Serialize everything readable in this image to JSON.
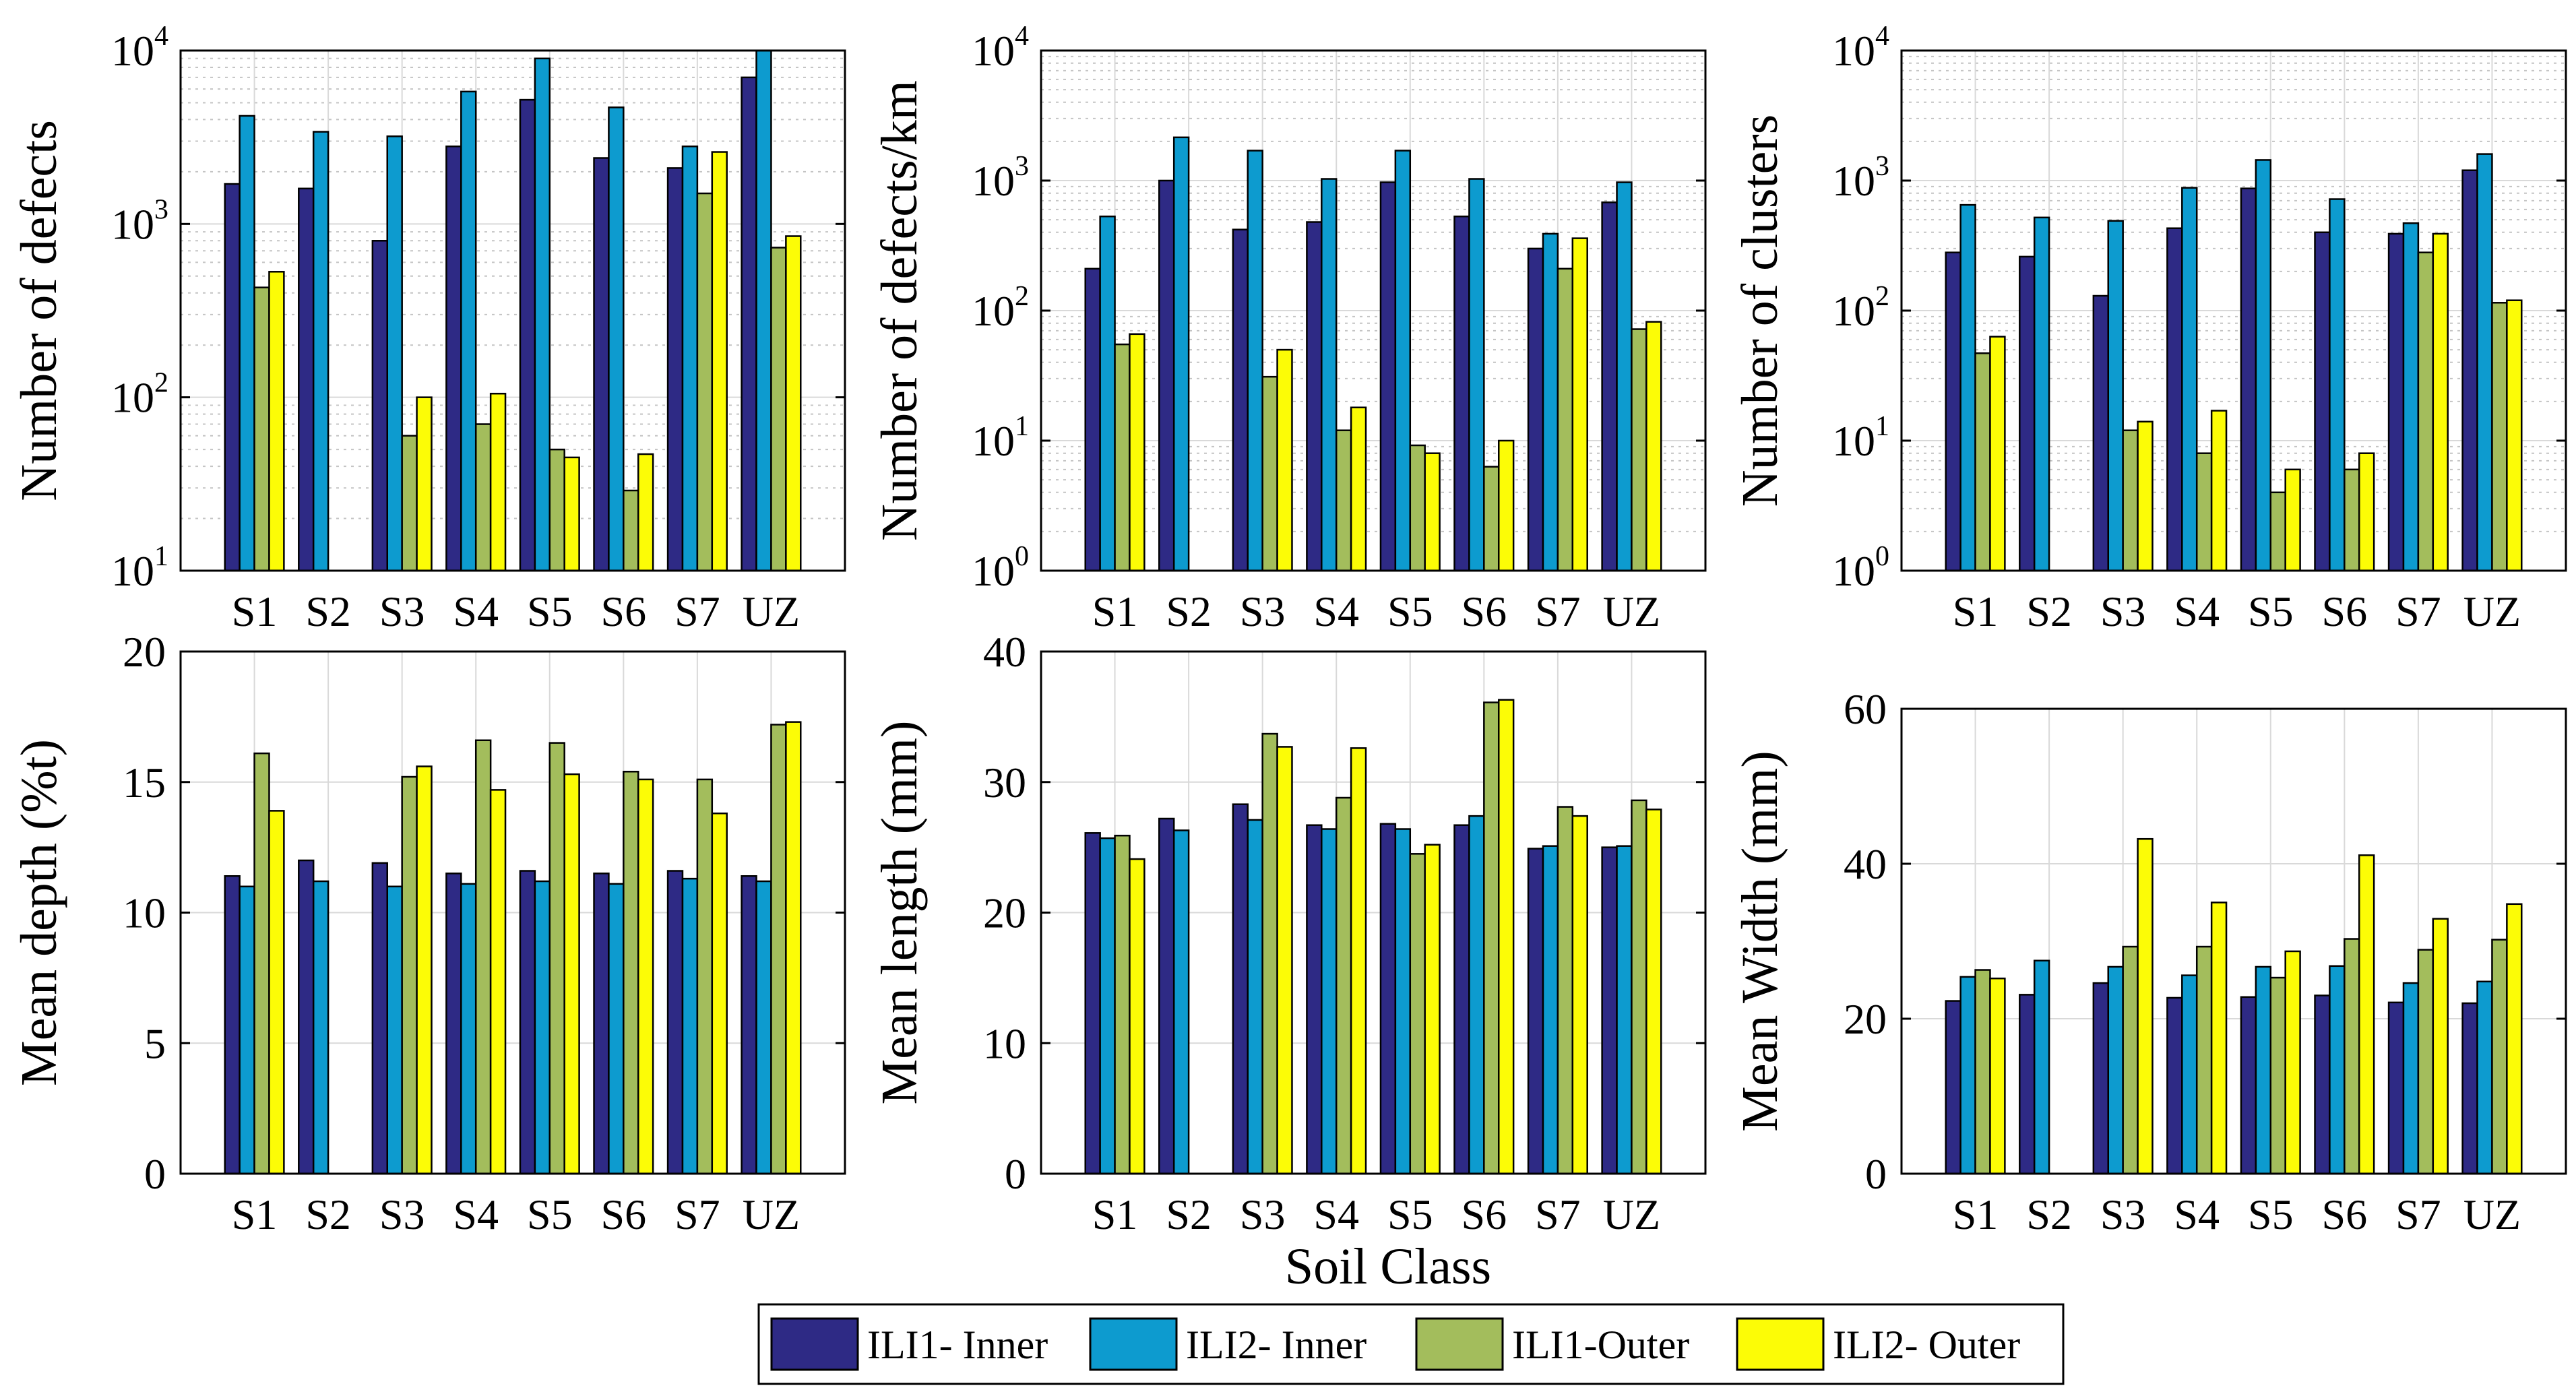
{
  "figure": {
    "xlabel": "Soil Class"
  },
  "colors": {
    "ILI1- Inner": "#2e2a85",
    "ILI2- Inner": "#0d9bcf",
    "ILI1-Outer": "#a3bd5c",
    "ILI2- Outer": "#fcfc06",
    "grid_major": "#d9d9d9",
    "grid_minor": "#c4c4c4"
  },
  "legend": {
    "entries": [
      "ILI1- Inner",
      "ILI2- Inner",
      "ILI1-Outer",
      "ILI2- Outer"
    ],
    "placement": "bottom-center"
  },
  "chart_data": [
    {
      "id": "defects",
      "type": "bar",
      "scale": "log",
      "ylabel": "Number of defects",
      "ylim": [
        10,
        10000
      ],
      "yticks": [
        "10^1",
        "10^2",
        "10^3",
        "10^4"
      ],
      "categories": [
        "S1",
        "S2",
        "S3",
        "S4",
        "S5",
        "S6",
        "S7",
        "UZ"
      ],
      "series": [
        {
          "name": "ILI1- Inner",
          "values": [
            1700,
            1600,
            800,
            2800,
            5200,
            2400,
            2100,
            7000
          ]
        },
        {
          "name": "ILI2- Inner",
          "values": [
            4200,
            3400,
            3200,
            5800,
            9000,
            4700,
            2800,
            10000
          ]
        },
        {
          "name": "ILI1-Outer",
          "values": [
            430,
            null,
            60,
            70,
            50,
            29,
            1500,
            730
          ]
        },
        {
          "name": "ILI2- Outer",
          "values": [
            530,
            null,
            100,
            105,
            45,
            47,
            2600,
            850
          ]
        }
      ]
    },
    {
      "id": "defects_km",
      "type": "bar",
      "scale": "log",
      "ylabel": "Number of defects/km",
      "ylim": [
        1,
        10000
      ],
      "yticks": [
        "10^0",
        "10^1",
        "10^2",
        "10^3",
        "10^4"
      ],
      "categories": [
        "S1",
        "S2",
        "S3",
        "S4",
        "S5",
        "S6",
        "S7",
        "UZ"
      ],
      "series": [
        {
          "name": "ILI1- Inner",
          "values": [
            210,
            1000,
            420,
            480,
            970,
            530,
            300,
            680
          ]
        },
        {
          "name": "ILI2- Inner",
          "values": [
            530,
            2150,
            1700,
            1030,
            1700,
            1030,
            390,
            970
          ]
        },
        {
          "name": "ILI1-Outer",
          "values": [
            55,
            null,
            31,
            12,
            9.2,
            6.3,
            210,
            72
          ]
        },
        {
          "name": "ILI2- Outer",
          "values": [
            66,
            null,
            50,
            18,
            8,
            10,
            360,
            82
          ]
        }
      ]
    },
    {
      "id": "clusters",
      "type": "bar",
      "scale": "log",
      "ylabel": "Number of clusters",
      "ylim": [
        1,
        10000
      ],
      "yticks": [
        "10^0",
        "10^1",
        "10^2",
        "10^3",
        "10^4"
      ],
      "categories": [
        "S1",
        "S2",
        "S3",
        "S4",
        "S5",
        "S6",
        "S7",
        "UZ"
      ],
      "series": [
        {
          "name": "ILI1- Inner",
          "values": [
            280,
            260,
            130,
            430,
            870,
            400,
            390,
            1200
          ]
        },
        {
          "name": "ILI2- Inner",
          "values": [
            650,
            520,
            490,
            880,
            1440,
            720,
            470,
            1600
          ]
        },
        {
          "name": "ILI1-Outer",
          "values": [
            47,
            null,
            12,
            8,
            4,
            6,
            280,
            115
          ]
        },
        {
          "name": "ILI2- Outer",
          "values": [
            63,
            null,
            14,
            17,
            6,
            8,
            390,
            120
          ]
        }
      ]
    },
    {
      "id": "depth",
      "type": "bar",
      "scale": "linear",
      "ylabel": "Mean depth (%t)",
      "ylim": [
        0,
        20
      ],
      "yticks": [
        "0",
        "5",
        "10",
        "15",
        "20"
      ],
      "categories": [
        "S1",
        "S2",
        "S3",
        "S4",
        "S5",
        "S6",
        "S7",
        "UZ"
      ],
      "series": [
        {
          "name": "ILI1- Inner",
          "values": [
            11.4,
            12.0,
            11.9,
            11.5,
            11.6,
            11.5,
            11.6,
            11.4
          ]
        },
        {
          "name": "ILI2- Inner",
          "values": [
            11.0,
            11.2,
            11.0,
            11.1,
            11.2,
            11.1,
            11.3,
            11.2
          ]
        },
        {
          "name": "ILI1-Outer",
          "values": [
            16.1,
            null,
            15.2,
            16.6,
            16.5,
            15.4,
            15.1,
            17.2
          ]
        },
        {
          "name": "ILI2- Outer",
          "values": [
            13.9,
            null,
            15.6,
            14.7,
            15.3,
            15.1,
            13.8,
            17.3
          ]
        }
      ]
    },
    {
      "id": "length",
      "type": "bar",
      "scale": "linear",
      "ylabel": "Mean length (mm)",
      "ylim": [
        0,
        40
      ],
      "yticks": [
        "0",
        "10",
        "20",
        "30",
        "40"
      ],
      "categories": [
        "S1",
        "S2",
        "S3",
        "S4",
        "S5",
        "S6",
        "S7",
        "UZ"
      ],
      "series": [
        {
          "name": "ILI1- Inner",
          "values": [
            26.1,
            27.2,
            28.3,
            26.7,
            26.8,
            26.7,
            24.9,
            25.0
          ]
        },
        {
          "name": "ILI2- Inner",
          "values": [
            25.7,
            26.3,
            27.1,
            26.4,
            26.4,
            27.4,
            25.1,
            25.1
          ]
        },
        {
          "name": "ILI1-Outer",
          "values": [
            25.9,
            null,
            33.7,
            28.8,
            24.5,
            36.1,
            28.1,
            28.6
          ]
        },
        {
          "name": "ILI2- Outer",
          "values": [
            24.1,
            null,
            32.7,
            32.6,
            25.2,
            36.3,
            27.4,
            27.9
          ]
        }
      ]
    },
    {
      "id": "width",
      "type": "bar",
      "scale": "linear",
      "ylabel": "Mean Width (mm)",
      "ylim": [
        0,
        60
      ],
      "yticks": [
        "0",
        "20",
        "40",
        "60"
      ],
      "categories": [
        "S1",
        "S2",
        "S3",
        "S4",
        "S5",
        "S6",
        "S7",
        "UZ"
      ],
      "series": [
        {
          "name": "ILI1- Inner",
          "values": [
            22.3,
            23.1,
            24.6,
            22.7,
            22.8,
            23.0,
            22.1,
            22.0
          ]
        },
        {
          "name": "ILI2- Inner",
          "values": [
            25.4,
            27.5,
            26.7,
            25.6,
            26.7,
            26.8,
            24.6,
            24.8
          ]
        },
        {
          "name": "ILI1-Outer",
          "values": [
            26.3,
            null,
            29.3,
            29.3,
            25.3,
            30.3,
            28.9,
            30.2
          ]
        },
        {
          "name": "ILI2- Outer",
          "values": [
            25.2,
            null,
            43.2,
            35.0,
            28.7,
            41.1,
            32.9,
            34.8
          ]
        }
      ]
    }
  ]
}
